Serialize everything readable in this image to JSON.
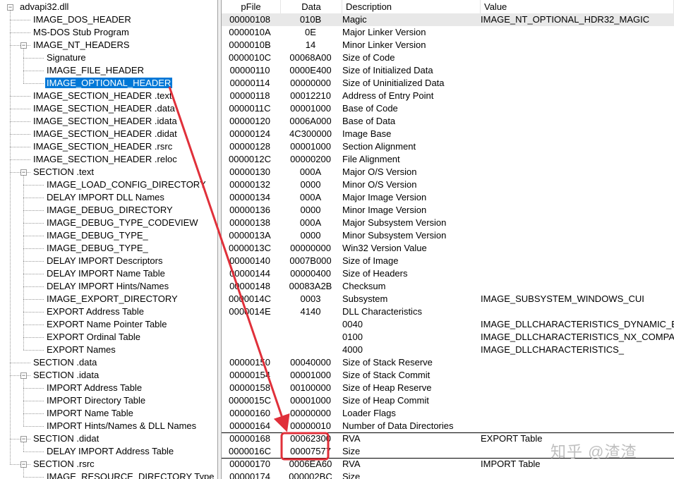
{
  "tree": [
    {
      "label": "advapi32.dll",
      "level": 0,
      "expanded": true
    },
    {
      "label": "IMAGE_DOS_HEADER",
      "level": 1
    },
    {
      "label": "MS-DOS Stub Program",
      "level": 1
    },
    {
      "label": "IMAGE_NT_HEADERS",
      "level": 1,
      "expanded": true
    },
    {
      "label": "Signature",
      "level": 2
    },
    {
      "label": "IMAGE_FILE_HEADER",
      "level": 2
    },
    {
      "label": "IMAGE_OPTIONAL_HEADER",
      "level": 2,
      "selected": true
    },
    {
      "label": "IMAGE_SECTION_HEADER .text",
      "level": 1
    },
    {
      "label": "IMAGE_SECTION_HEADER .data",
      "level": 1
    },
    {
      "label": "IMAGE_SECTION_HEADER .idata",
      "level": 1
    },
    {
      "label": "IMAGE_SECTION_HEADER .didat",
      "level": 1
    },
    {
      "label": "IMAGE_SECTION_HEADER .rsrc",
      "level": 1
    },
    {
      "label": "IMAGE_SECTION_HEADER .reloc",
      "level": 1
    },
    {
      "label": "SECTION .text",
      "level": 1,
      "expanded": true
    },
    {
      "label": "IMAGE_LOAD_CONFIG_DIRECTORY",
      "level": 2
    },
    {
      "label": "DELAY IMPORT DLL Names",
      "level": 2
    },
    {
      "label": "IMAGE_DEBUG_DIRECTORY",
      "level": 2
    },
    {
      "label": "IMAGE_DEBUG_TYPE_CODEVIEW",
      "level": 2
    },
    {
      "label": "IMAGE_DEBUG_TYPE_",
      "level": 2
    },
    {
      "label": "IMAGE_DEBUG_TYPE_",
      "level": 2
    },
    {
      "label": "DELAY IMPORT Descriptors",
      "level": 2
    },
    {
      "label": "DELAY IMPORT Name Table",
      "level": 2
    },
    {
      "label": "DELAY IMPORT Hints/Names",
      "level": 2
    },
    {
      "label": "IMAGE_EXPORT_DIRECTORY",
      "level": 2
    },
    {
      "label": "EXPORT Address Table",
      "level": 2
    },
    {
      "label": "EXPORT Name Pointer Table",
      "level": 2
    },
    {
      "label": "EXPORT Ordinal Table",
      "level": 2
    },
    {
      "label": "EXPORT Names",
      "level": 2
    },
    {
      "label": "SECTION .data",
      "level": 1
    },
    {
      "label": "SECTION .idata",
      "level": 1,
      "expanded": true
    },
    {
      "label": "IMPORT Address Table",
      "level": 2
    },
    {
      "label": "IMPORT Directory Table",
      "level": 2
    },
    {
      "label": "IMPORT Name Table",
      "level": 2
    },
    {
      "label": "IMPORT Hints/Names & DLL Names",
      "level": 2
    },
    {
      "label": "SECTION .didat",
      "level": 1,
      "expanded": true
    },
    {
      "label": "DELAY IMPORT Address Table",
      "level": 2
    },
    {
      "label": "SECTION .rsrc",
      "level": 1,
      "expanded": true
    },
    {
      "label": "IMAGE_RESOURCE_DIRECTORY Type",
      "level": 2
    }
  ],
  "columns": [
    "pFile",
    "Data",
    "Description",
    "Value"
  ],
  "rows": [
    [
      "00000108",
      "010B",
      "Magic",
      "IMAGE_NT_OPTIONAL_HDR32_MAGIC"
    ],
    [
      "0000010A",
      "0E",
      "Major Linker Version",
      ""
    ],
    [
      "0000010B",
      "14",
      "Minor Linker Version",
      ""
    ],
    [
      "0000010C",
      "00068A00",
      "Size of Code",
      ""
    ],
    [
      "00000110",
      "0000E400",
      "Size of Initialized Data",
      ""
    ],
    [
      "00000114",
      "00000000",
      "Size of Uninitialized Data",
      ""
    ],
    [
      "00000118",
      "00012210",
      "Address of Entry Point",
      ""
    ],
    [
      "0000011C",
      "00001000",
      "Base of Code",
      ""
    ],
    [
      "00000120",
      "0006A000",
      "Base of Data",
      ""
    ],
    [
      "00000124",
      "4C300000",
      "Image Base",
      ""
    ],
    [
      "00000128",
      "00001000",
      "Section Alignment",
      ""
    ],
    [
      "0000012C",
      "00000200",
      "File Alignment",
      ""
    ],
    [
      "00000130",
      "000A",
      "Major O/S Version",
      ""
    ],
    [
      "00000132",
      "0000",
      "Minor O/S Version",
      ""
    ],
    [
      "00000134",
      "000A",
      "Major Image Version",
      ""
    ],
    [
      "00000136",
      "0000",
      "Minor Image Version",
      ""
    ],
    [
      "00000138",
      "000A",
      "Major Subsystem Version",
      ""
    ],
    [
      "0000013A",
      "0000",
      "Minor Subsystem Version",
      ""
    ],
    [
      "0000013C",
      "00000000",
      "Win32 Version Value",
      ""
    ],
    [
      "00000140",
      "0007B000",
      "Size of Image",
      ""
    ],
    [
      "00000144",
      "00000400",
      "Size of Headers",
      ""
    ],
    [
      "00000148",
      "00083A2B",
      "Checksum",
      ""
    ],
    [
      "0000014C",
      "0003",
      "Subsystem",
      "IMAGE_SUBSYSTEM_WINDOWS_CUI"
    ],
    [
      "0000014E",
      "4140",
      "DLL Characteristics",
      ""
    ],
    [
      "",
      "",
      "0040",
      "IMAGE_DLLCHARACTERISTICS_DYNAMIC_B"
    ],
    [
      "",
      "",
      "0100",
      "IMAGE_DLLCHARACTERISTICS_NX_COMPAT"
    ],
    [
      "",
      "",
      "4000",
      "IMAGE_DLLCHARACTERISTICS_"
    ],
    [
      "00000150",
      "00040000",
      "Size of Stack Reserve",
      ""
    ],
    [
      "00000154",
      "00001000",
      "Size of Stack Commit",
      ""
    ],
    [
      "00000158",
      "00100000",
      "Size of Heap Reserve",
      ""
    ],
    [
      "0000015C",
      "00001000",
      "Size of Heap Commit",
      ""
    ],
    [
      "00000160",
      "00000000",
      "Loader Flags",
      ""
    ],
    [
      "00000164",
      "00000010",
      "Number of Data Directories",
      ""
    ],
    [
      "00000168",
      "00062300",
      "RVA",
      "EXPORT Table"
    ],
    [
      "0000016C",
      "00007577",
      "Size",
      ""
    ],
    [
      "00000170",
      "0006EA60",
      "RVA",
      "IMPORT Table"
    ],
    [
      "00000174",
      "000002BC",
      "Size",
      ""
    ]
  ],
  "selected_row": 0,
  "watermark": "知乎 @渣渣",
  "colors": {
    "selection": "#0078d7",
    "annotation": "#e0303a"
  }
}
